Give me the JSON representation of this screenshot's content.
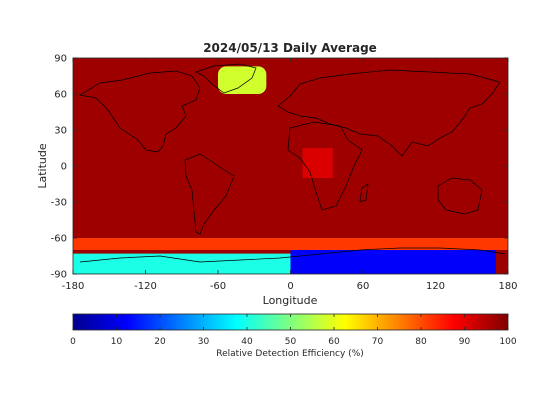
{
  "chart_data": {
    "type": "heatmap",
    "title": "2024/05/13 Daily Average",
    "xlabel": "Longitude",
    "ylabel": "Latitude",
    "xlim": [
      -180,
      180
    ],
    "ylim": [
      -90,
      90
    ],
    "x_ticks": [
      -180,
      -120,
      -60,
      0,
      60,
      120,
      180
    ],
    "y_ticks": [
      90,
      60,
      30,
      0,
      -30,
      -60,
      -90
    ],
    "colorbar": {
      "label": "Relative Detection Efficiency (%)",
      "range": [
        0,
        100
      ],
      "ticks": [
        0,
        10,
        20,
        30,
        40,
        50,
        60,
        70,
        80,
        90,
        100
      ],
      "colormap": "jet"
    },
    "field_summary": {
      "background_value": 97,
      "regions": [
        {
          "name": "Greenland",
          "lon": [
            -60,
            -20
          ],
          "lat": [
            60,
            83
          ],
          "value": 58
        },
        {
          "name": "Antarctica (East)",
          "lon": [
            0,
            170
          ],
          "lat": [
            -90,
            -68
          ],
          "value": 12
        },
        {
          "name": "Antarctica (West)",
          "lon": [
            -180,
            0
          ],
          "lat": [
            -90,
            -73
          ],
          "value": 40
        },
        {
          "name": "Southern Ocean band",
          "lon": [
            -180,
            180
          ],
          "lat": [
            -70,
            -60
          ],
          "value": 82
        },
        {
          "name": "Central Africa",
          "lon": [
            10,
            35
          ],
          "lat": [
            -10,
            15
          ],
          "value": 91
        }
      ]
    }
  }
}
